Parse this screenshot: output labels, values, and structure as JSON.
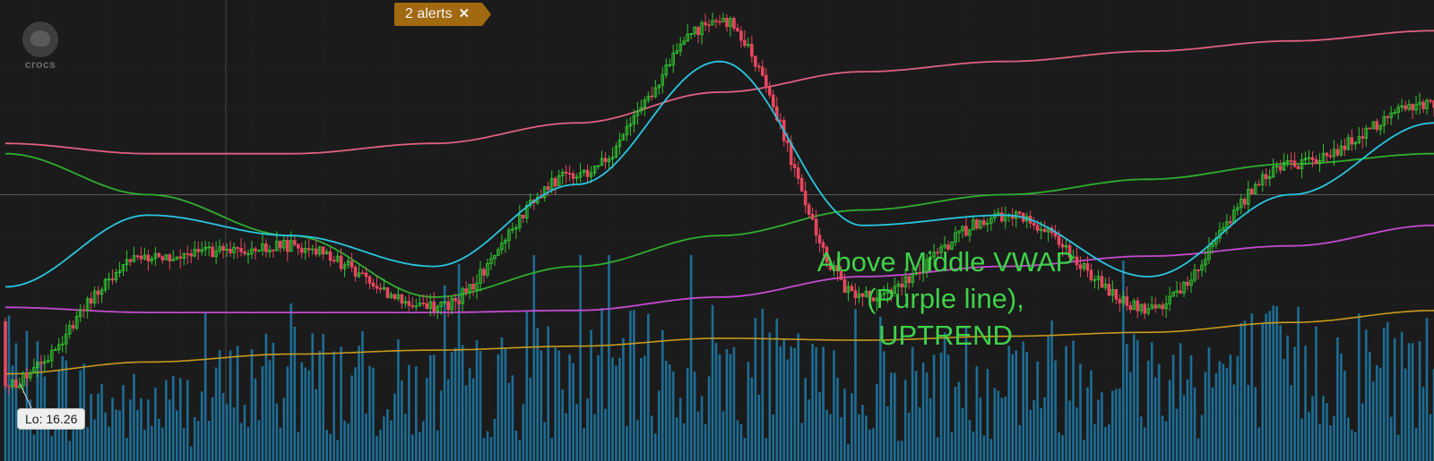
{
  "alerts": {
    "label": "2 alerts",
    "close_icon": "close-icon"
  },
  "logo": {
    "text": "crocs",
    "icon": "crocs-logo-icon"
  },
  "annotation": {
    "lines": [
      "Above Middle VWAP",
      "(Purple line),",
      "UPTREND"
    ]
  },
  "lo_label": "Lo: 16.26",
  "colors": {
    "background": "#1b1b1b",
    "up_candle": "#32c832",
    "down_candle": "#e8475f",
    "ema": "#29c6e0",
    "sma": "#2fae2f",
    "vwap_upper": "#e0607f",
    "vwap_middle": "#c44bd1",
    "volume": "#1d6d95",
    "volume_avg": "#c89b1c",
    "annotation": "#3fd14a",
    "alert_badge": "#a16a10"
  },
  "chart_data": {
    "type": "candlestick",
    "x_index": [
      0,
      40,
      80,
      120,
      160,
      200,
      240,
      280,
      320,
      360,
      400
    ],
    "close": [
      16.26,
      17.5,
      17.6,
      17.0,
      18.3,
      19.8,
      17.1,
      17.9,
      17.0,
      18.4,
      19.0
    ],
    "series": [
      {
        "values": [
          17.2,
          17.9,
          17.7,
          17.4,
          18.2,
          19.4,
          17.8,
          17.9,
          17.3,
          18.1,
          18.8
        ]
      },
      {
        "values": [
          18.5,
          18.1,
          17.7,
          17.1,
          17.4,
          17.7,
          17.95,
          18.1,
          18.25,
          18.4,
          18.5
        ]
      },
      {
        "values": [
          18.6,
          18.5,
          18.5,
          18.6,
          18.8,
          19.1,
          19.3,
          19.4,
          19.5,
          19.6,
          19.7
        ]
      },
      {
        "values": [
          17.0,
          16.95,
          16.95,
          16.95,
          16.97,
          17.1,
          17.3,
          17.4,
          17.5,
          17.6,
          17.8
        ]
      }
    ],
    "volume_series": {
      "values": [
        3200,
        2200,
        3400,
        2900,
        3500,
        3900,
        2800,
        3600,
        3500,
        3900,
        3800
      ]
    },
    "reference_line": 18.1,
    "ylim": [
      15.5,
      20.0
    ],
    "low_value": 16.26
  }
}
